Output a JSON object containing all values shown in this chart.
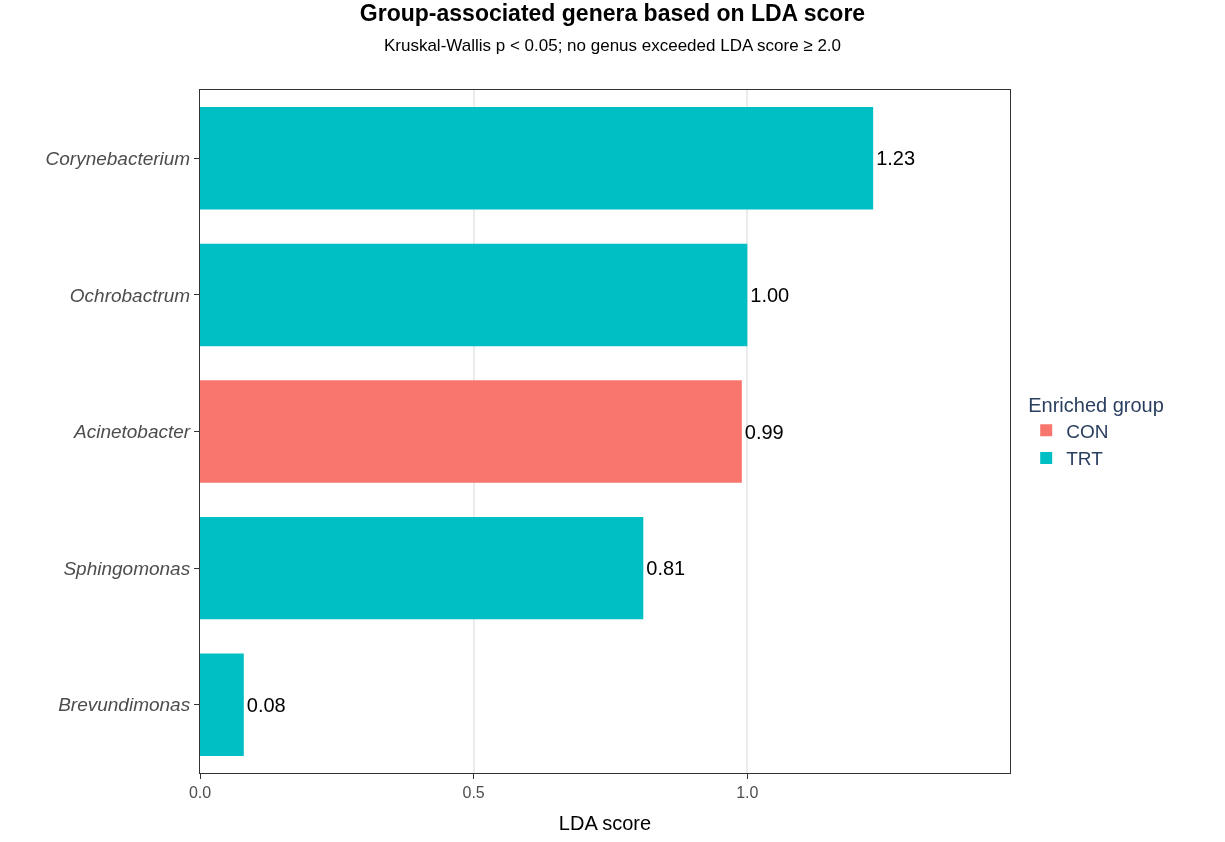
{
  "chart_data": {
    "type": "bar",
    "orientation": "horizontal",
    "title": "Group-associated genera based on LDA score",
    "subtitle": "Kruskal-Wallis p < 0.05; no genus exceeded LDA score ≥ 2.0",
    "xlabel": "LDA score",
    "legend_title": "Enriched group",
    "categories": [
      "Corynebacterium",
      "Ochrobactrum",
      "Acinetobacter",
      "Sphingomonas",
      "Brevundimonas"
    ],
    "series": [
      {
        "name": "CON",
        "color": "#f8766d",
        "values": [
          null,
          null,
          0.99,
          null,
          null
        ]
      },
      {
        "name": "TRT",
        "color": "#00bfc4",
        "values": [
          1.23,
          1.0,
          null,
          0.81,
          0.08
        ]
      }
    ],
    "value_labels": [
      "1.23",
      "1.00",
      "0.99",
      "0.81",
      "0.08"
    ],
    "xlim": [
      0,
      1.48
    ],
    "xticks": [
      {
        "value": 0,
        "label": "0.0"
      },
      0.5,
      {
        "value": 1,
        "label": "1.0"
      }
    ],
    "grid": "x",
    "legend": "right"
  }
}
